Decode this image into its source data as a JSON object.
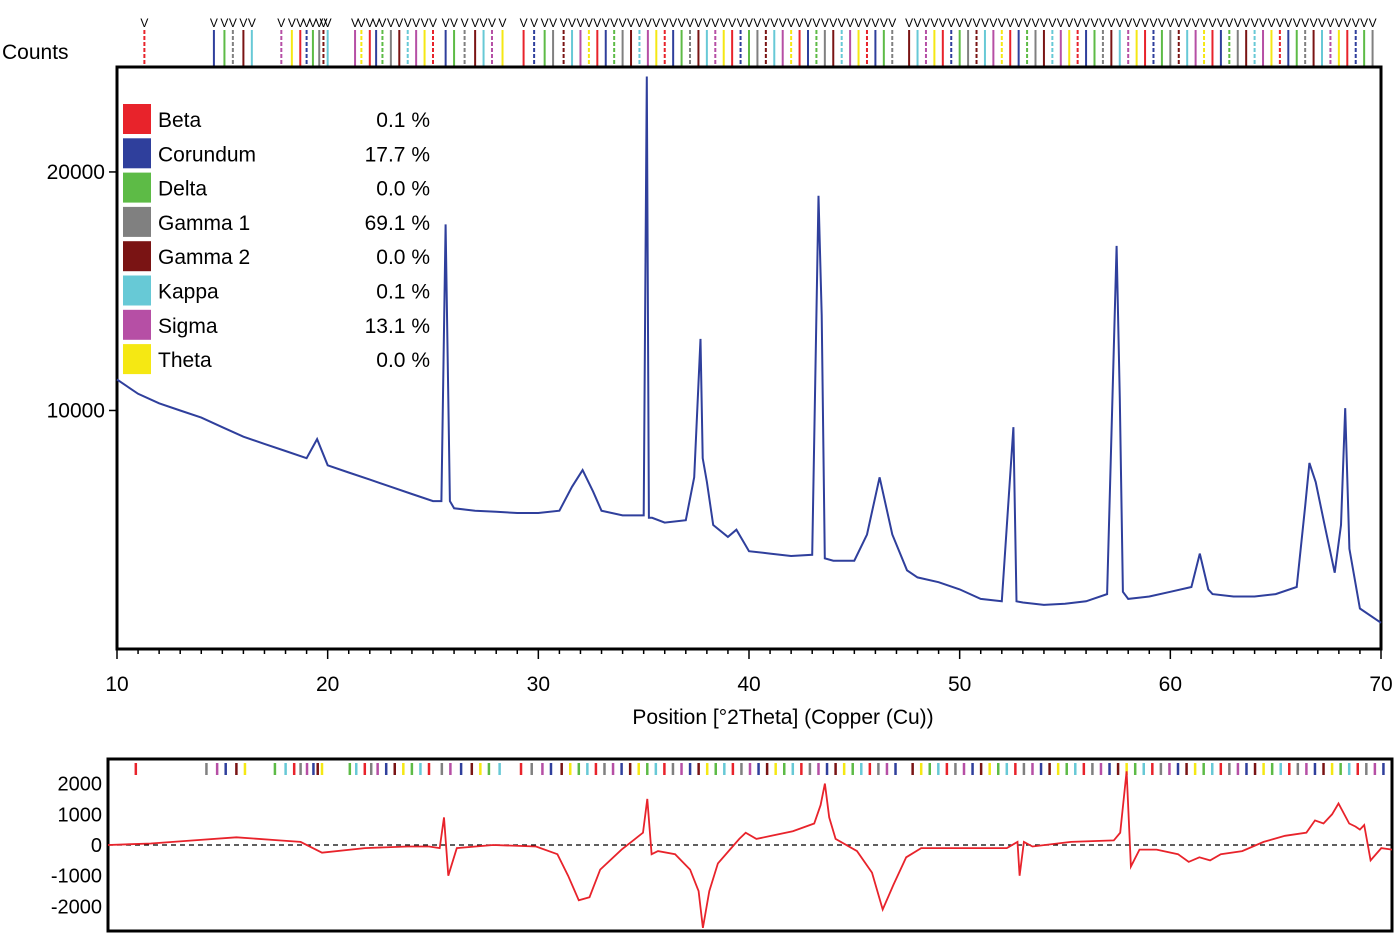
{
  "chart_data": [
    {
      "type": "line",
      "title": "",
      "ylabel": "Counts",
      "xlabel": "Position [°2Theta] (Copper (Cu))",
      "xlim": [
        10,
        70
      ],
      "ylim": [
        0,
        24400
      ],
      "x_ticks": [
        10,
        20,
        30,
        40,
        50,
        60,
        70
      ],
      "y_ticks": [
        10000,
        20000
      ],
      "grid": false,
      "legend_position": "top-left",
      "legend": [
        {
          "name": "Beta",
          "percent": "0.1 %",
          "color": "#e8232b"
        },
        {
          "name": "Corundum",
          "percent": "17.7 %",
          "color": "#2f3f9c"
        },
        {
          "name": "Delta",
          "percent": "0.0 %",
          "color": "#5dbb46"
        },
        {
          "name": "Gamma 1",
          "percent": "69.1 %",
          "color": "#808080"
        },
        {
          "name": "Gamma 2",
          "percent": "0.0 %",
          "color": "#7a1414"
        },
        {
          "name": "Kappa",
          "percent": "0.1 %",
          "color": "#67c9d6"
        },
        {
          "name": "Sigma",
          "percent": "13.1 %",
          "color": "#b64fa5"
        },
        {
          "name": "Theta",
          "percent": "0.0 %",
          "color": "#f5e813"
        }
      ],
      "profile": {
        "color": "#2f3f9c",
        "x": [
          10,
          11,
          12,
          13,
          14,
          15,
          16,
          17,
          18,
          19,
          19.5,
          20,
          21,
          22,
          23,
          24,
          25,
          25.4,
          25.6,
          25.8,
          26,
          27,
          28,
          29,
          30,
          31,
          31.6,
          32.1,
          32.6,
          33,
          34,
          35,
          35.15,
          35.25,
          35.4,
          36,
          37,
          37.4,
          37.7,
          37.8,
          38,
          38.3,
          39,
          39.4,
          39.8,
          40,
          41,
          42,
          43,
          43.3,
          43.45,
          43.6,
          44,
          45,
          45.6,
          46.2,
          46.8,
          47.5,
          48,
          49,
          50,
          51,
          52,
          52.55,
          52.7,
          53,
          54,
          55,
          56,
          57,
          57.45,
          57.6,
          57.75,
          58,
          59,
          60,
          61,
          61.4,
          61.8,
          62,
          63,
          64,
          65,
          66,
          66.4,
          66.6,
          66.9,
          67.3,
          67.8,
          68.1,
          68.3,
          68.5,
          69,
          70
        ],
        "y": [
          11300,
          10700,
          10300,
          10000,
          9700,
          9300,
          8900,
          8600,
          8300,
          8000,
          8800,
          7700,
          7400,
          7100,
          6800,
          6500,
          6200,
          6200,
          17800,
          6200,
          5900,
          5800,
          5750,
          5700,
          5700,
          5800,
          6800,
          7500,
          6600,
          5800,
          5600,
          5600,
          24000,
          5500,
          5500,
          5300,
          5400,
          7200,
          13000,
          8000,
          7000,
          5200,
          4700,
          5000,
          4400,
          4100,
          4000,
          3900,
          3950,
          19000,
          14000,
          3800,
          3700,
          3700,
          4800,
          7200,
          4800,
          3300,
          3000,
          2800,
          2500,
          2100,
          2000,
          9300,
          2000,
          1950,
          1850,
          1900,
          2000,
          2300,
          16900,
          10500,
          2400,
          2100,
          2200,
          2400,
          2600,
          4000,
          2500,
          2300,
          2200,
          2200,
          2300,
          2600,
          6000,
          7800,
          7000,
          5300,
          3200,
          5200,
          10100,
          4200,
          1700,
          1100
        ]
      },
      "reference_peaks_x": [
        11.3,
        14.6,
        15.1,
        15.5,
        16.0,
        16.4,
        17.8,
        18.3,
        18.7,
        19.0,
        19.3,
        19.6,
        19.8,
        20.0,
        21.3,
        21.6,
        22.0,
        22.3,
        22.6,
        23.0,
        23.4,
        23.8,
        24.2,
        24.6,
        25.0,
        25.6,
        26.0,
        26.5,
        27.0,
        27.4,
        27.8,
        28.3,
        29.3,
        29.8,
        30.3,
        30.7,
        31.2,
        31.6,
        32.0,
        32.4,
        32.8,
        33.2,
        33.6,
        34.0,
        34.4,
        34.8,
        35.2,
        35.6,
        36.0,
        36.4,
        36.8,
        37.2,
        37.6,
        38.0,
        38.4,
        38.8,
        39.2,
        39.6,
        40.0,
        40.4,
        40.8,
        41.2,
        41.6,
        42.0,
        42.4,
        42.8,
        43.2,
        43.6,
        44.0,
        44.4,
        44.8,
        45.2,
        45.6,
        46.0,
        46.4,
        46.8,
        47.6,
        48.0,
        48.4,
        48.8,
        49.2,
        49.6,
        50.0,
        50.4,
        50.8,
        51.2,
        51.6,
        52.0,
        52.4,
        52.8,
        53.2,
        53.6,
        54.0,
        54.4,
        54.8,
        55.2,
        55.6,
        56.0,
        56.4,
        56.8,
        57.2,
        57.6,
        58.0,
        58.4,
        58.8,
        59.2,
        59.6,
        60.0,
        60.4,
        60.8,
        61.2,
        61.6,
        62.0,
        62.4,
        62.8,
        63.2,
        63.6,
        64.0,
        64.4,
        64.8,
        65.2,
        65.6,
        66.0,
        66.4,
        66.8,
        67.2,
        67.6,
        68.0,
        68.4,
        68.8,
        69.2,
        69.6
      ],
      "reference_peak_label": "V"
    },
    {
      "type": "line",
      "title": "",
      "xlabel": "",
      "ylabel": "",
      "xlim": [
        10,
        70
      ],
      "ylim": [
        -2800,
        2800
      ],
      "y_ticks": [
        -2000,
        -1000,
        0,
        1000,
        2000
      ],
      "zero_line": "dashed",
      "series": [
        {
          "color": "#e8232b",
          "x": [
            10,
            12,
            14,
            16,
            18,
            19,
            20,
            22,
            24,
            25,
            25.5,
            25.7,
            25.9,
            26.3,
            28,
            30,
            31,
            31.5,
            32,
            32.5,
            33,
            34,
            35,
            35.2,
            35.4,
            35.7,
            36.5,
            37.2,
            37.6,
            37.8,
            38.1,
            38.5,
            39,
            39.5,
            39.8,
            40.3,
            41,
            42,
            43,
            43.3,
            43.5,
            43.7,
            44,
            45,
            45.7,
            46.2,
            46.7,
            47.3,
            48,
            50,
            52,
            52.5,
            52.6,
            52.8,
            53.2,
            55,
            57,
            57.3,
            57.6,
            57.8,
            58.2,
            59,
            60,
            60.5,
            61,
            61.5,
            62,
            63,
            64,
            65,
            66,
            66.4,
            66.8,
            67.2,
            67.5,
            68,
            68.3,
            68.5,
            68.7,
            69,
            69.5,
            70
          ],
          "y": [
            0,
            50,
            150,
            250,
            150,
            100,
            -250,
            -100,
            -50,
            -50,
            -100,
            900,
            -1000,
            -100,
            0,
            -50,
            -300,
            -1000,
            -1800,
            -1700,
            -800,
            -150,
            400,
            1500,
            -300,
            -200,
            -300,
            -800,
            -1500,
            -2700,
            -1500,
            -600,
            -200,
            200,
            400,
            200,
            300,
            450,
            700,
            1300,
            2000,
            900,
            200,
            -200,
            -900,
            -2100,
            -1300,
            -400,
            -100,
            -100,
            -100,
            100,
            -1000,
            100,
            -50,
            100,
            150,
            400,
            2400,
            -700,
            -150,
            -150,
            -300,
            -550,
            -400,
            -500,
            -300,
            -200,
            100,
            300,
            400,
            800,
            700,
            1000,
            1350,
            700,
            600,
            500,
            650,
            -500,
            -100,
            -150
          ]
        }
      ],
      "reference_ticks": "multicolored"
    }
  ]
}
